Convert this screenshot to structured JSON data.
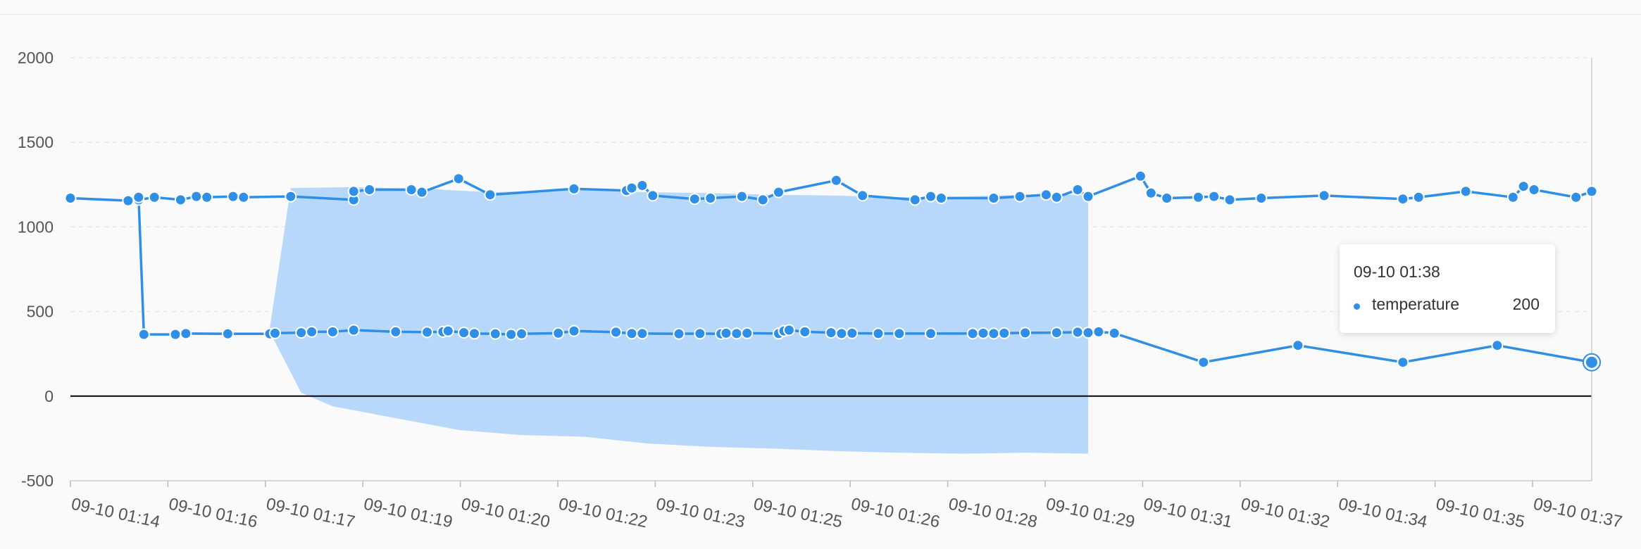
{
  "colors": {
    "line": "#2f8fe6",
    "band": "#b3d6fb",
    "grid": "#e6e6e6",
    "axis": "#000000",
    "label": "#555555"
  },
  "chart_data": {
    "type": "line",
    "title": "",
    "xlabel": "",
    "ylabel": "",
    "grid": true,
    "ylim": [
      -500,
      2000
    ],
    "y_ticks": [
      2000,
      1500,
      1000,
      500,
      0,
      -500
    ],
    "x_tick_labels": [
      "09-10 01:14",
      "09-10 01:16",
      "09-10 01:17",
      "09-10 01:19",
      "09-10 01:20",
      "09-10 01:22",
      "09-10 01:23",
      "09-10 01:25",
      "09-10 01:26",
      "09-10 01:28",
      "09-10 01:29",
      "09-10 01:31",
      "09-10 01:32",
      "09-10 01:34",
      "09-10 01:35",
      "09-10 01:37"
    ],
    "x_start": "09-10 01:13:50",
    "x_end": "09-10 01:38:00",
    "series": [
      {
        "name": "temperature",
        "points": [
          [
            "01:13:50",
            1170
          ],
          [
            "01:14:45",
            1155
          ],
          [
            "01:14:55",
            1160
          ],
          [
            "01:15:10",
            1175
          ],
          [
            "01:15:35",
            1160
          ],
          [
            "01:15:50",
            1180
          ],
          [
            "01:16:00",
            1175
          ],
          [
            "01:16:25",
            1180
          ],
          [
            "01:16:35",
            1175
          ],
          [
            "01:17:20",
            1180
          ],
          [
            "01:18:20",
            1160
          ],
          [
            "01:18:20",
            1210
          ],
          [
            "01:18:35",
            1220
          ],
          [
            "01:19:15",
            1220
          ],
          [
            "01:19:25",
            1205
          ],
          [
            "01:20:00",
            1285
          ],
          [
            "01:20:30",
            1190
          ],
          [
            "01:21:50",
            1225
          ],
          [
            "01:22:40",
            1215
          ],
          [
            "01:22:45",
            1230
          ],
          [
            "01:22:55",
            1245
          ],
          [
            "01:23:05",
            1185
          ],
          [
            "01:23:45",
            1165
          ],
          [
            "01:24:00",
            1170
          ],
          [
            "01:24:30",
            1180
          ],
          [
            "01:24:50",
            1160
          ],
          [
            "01:25:05",
            1205
          ],
          [
            "01:26:00",
            1275
          ],
          [
            "01:26:25",
            1185
          ],
          [
            "01:27:15",
            1160
          ],
          [
            "01:27:30",
            1180
          ],
          [
            "01:27:40",
            1170
          ],
          [
            "01:28:30",
            1170
          ],
          [
            "01:28:55",
            1180
          ],
          [
            "01:29:20",
            1190
          ],
          [
            "01:29:30",
            1175
          ],
          [
            "01:29:50",
            1220
          ],
          [
            "01:30:00",
            1180
          ],
          [
            "01:30:50",
            1300
          ],
          [
            "01:31:00",
            1200
          ],
          [
            "01:31:15",
            1170
          ],
          [
            "01:31:45",
            1175
          ],
          [
            "01:32:00",
            1180
          ],
          [
            "01:32:15",
            1160
          ],
          [
            "01:32:45",
            1170
          ],
          [
            "01:33:45",
            1185
          ],
          [
            "01:35:00",
            1165
          ],
          [
            "01:35:15",
            1175
          ],
          [
            "01:36:00",
            1210
          ],
          [
            "01:36:45",
            1175
          ],
          [
            "01:36:55",
            1240
          ],
          [
            "01:37:05",
            1220
          ],
          [
            "01:37:45",
            1175
          ],
          [
            "01:38:00",
            1210
          ]
        ]
      },
      {
        "name": "temperature",
        "points": [
          [
            "01:14:55",
            1175
          ],
          [
            "01:15:00",
            365
          ],
          [
            "01:15:30",
            365
          ],
          [
            "01:15:40",
            370
          ],
          [
            "01:16:20",
            368
          ],
          [
            "01:17:00",
            368
          ],
          [
            "01:17:05",
            372
          ],
          [
            "01:17:30",
            375
          ],
          [
            "01:17:40",
            380
          ],
          [
            "01:18:00",
            380
          ],
          [
            "01:18:20",
            390
          ],
          [
            "01:19:00",
            380
          ],
          [
            "01:19:30",
            378
          ],
          [
            "01:19:45",
            380
          ],
          [
            "01:19:50",
            385
          ],
          [
            "01:20:05",
            375
          ],
          [
            "01:20:15",
            370
          ],
          [
            "01:20:35",
            368
          ],
          [
            "01:20:50",
            365
          ],
          [
            "01:21:00",
            368
          ],
          [
            "01:21:35",
            372
          ],
          [
            "01:21:50",
            385
          ],
          [
            "01:22:30",
            378
          ],
          [
            "01:22:45",
            370
          ],
          [
            "01:22:55",
            370
          ],
          [
            "01:23:30",
            368
          ],
          [
            "01:23:50",
            370
          ],
          [
            "01:24:10",
            368
          ],
          [
            "01:24:15",
            372
          ],
          [
            "01:24:25",
            370
          ],
          [
            "01:24:35",
            372
          ],
          [
            "01:25:05",
            370
          ],
          [
            "01:25:10",
            385
          ],
          [
            "01:25:15",
            390
          ],
          [
            "01:25:30",
            380
          ],
          [
            "01:25:55",
            375
          ],
          [
            "01:26:05",
            370
          ],
          [
            "01:26:15",
            372
          ],
          [
            "01:26:40",
            370
          ],
          [
            "01:27:00",
            370
          ],
          [
            "01:27:30",
            370
          ],
          [
            "01:28:10",
            370
          ],
          [
            "01:28:20",
            372
          ],
          [
            "01:28:30",
            370
          ],
          [
            "01:28:40",
            372
          ],
          [
            "01:29:00",
            374
          ],
          [
            "01:29:30",
            375
          ],
          [
            "01:29:50",
            378
          ],
          [
            "01:30:00",
            375
          ],
          [
            "01:30:10",
            380
          ],
          [
            "01:30:25",
            372
          ],
          [
            "01:31:50",
            200
          ],
          [
            "01:33:20",
            300
          ],
          [
            "01:35:00",
            200
          ],
          [
            "01:36:30",
            300
          ],
          [
            "01:38:00",
            200
          ]
        ]
      }
    ],
    "band": {
      "upper": [
        [
          "01:17:00",
          400
        ],
        [
          "01:17:20",
          1230
        ],
        [
          "01:18:20",
          1235
        ],
        [
          "01:19:30",
          1225
        ],
        [
          "01:20:30",
          1205
        ],
        [
          "01:22:00",
          1220
        ],
        [
          "01:23:00",
          1205
        ],
        [
          "01:24:00",
          1200
        ],
        [
          "01:25:00",
          1190
        ],
        [
          "01:26:00",
          1185
        ],
        [
          "01:27:00",
          1175
        ],
        [
          "01:28:00",
          1180
        ],
        [
          "01:29:00",
          1190
        ],
        [
          "01:30:00",
          1190
        ]
      ],
      "lower": [
        [
          "01:30:00",
          -340
        ],
        [
          "01:29:00",
          -335
        ],
        [
          "01:28:00",
          -340
        ],
        [
          "01:27:00",
          -335
        ],
        [
          "01:26:00",
          -325
        ],
        [
          "01:25:00",
          -310
        ],
        [
          "01:24:00",
          -300
        ],
        [
          "01:23:00",
          -280
        ],
        [
          "01:22:00",
          -240
        ],
        [
          "01:21:00",
          -230
        ],
        [
          "01:20:00",
          -200
        ],
        [
          "01:19:00",
          -130
        ],
        [
          "01:18:00",
          -60
        ],
        [
          "01:17:30",
          20
        ],
        [
          "01:17:00",
          380
        ]
      ]
    },
    "hover": {
      "time": "09-10 01:38",
      "series": "temperature",
      "value": 200
    }
  },
  "tooltip": {
    "title": "09-10 01:38",
    "series_name": "temperature",
    "value": "200"
  }
}
